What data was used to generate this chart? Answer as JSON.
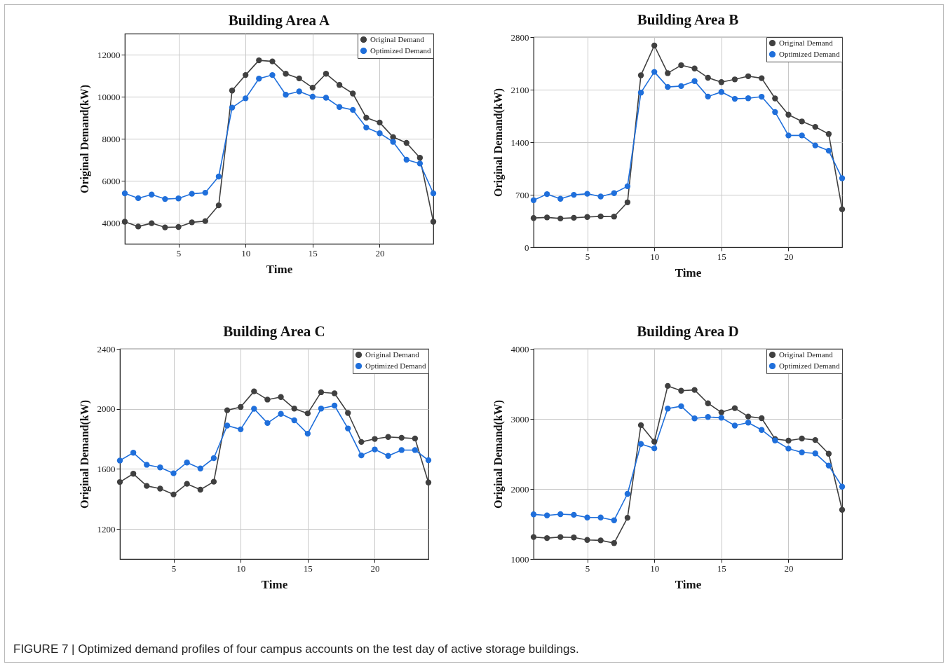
{
  "chart_data": [
    {
      "type": "line",
      "title": "Building Area A",
      "xlabel": "Time",
      "ylabel": "Original Demand(kW)",
      "x": [
        1,
        2,
        3,
        4,
        5,
        6,
        7,
        8,
        9,
        10,
        11,
        12,
        13,
        14,
        15,
        16,
        17,
        18,
        19,
        20,
        21,
        22,
        23,
        24
      ],
      "xlim": [
        1,
        24
      ],
      "xticks": [
        5,
        10,
        15,
        20
      ],
      "ylim": [
        3000,
        13000
      ],
      "yticks": [
        4000,
        6000,
        8000,
        10000,
        12000
      ],
      "grid": true,
      "legend": "top right",
      "marker": "circle",
      "line_style": "solid",
      "series": [
        {
          "name": "Original Demand",
          "color": "#404040",
          "values": [
            4050,
            3820,
            3980,
            3780,
            3800,
            4020,
            4080,
            4830,
            10290,
            11030,
            11730,
            11680,
            11090,
            10870,
            10430,
            11090,
            10560,
            10150,
            9000,
            8770,
            8080,
            7800,
            7090,
            4050
          ]
        },
        {
          "name": "Optimized Demand",
          "color": "#1f6fdb",
          "values": [
            5400,
            5170,
            5340,
            5130,
            5160,
            5380,
            5430,
            6200,
            9480,
            9920,
            10860,
            11030,
            10090,
            10250,
            10000,
            9950,
            9510,
            9370,
            8530,
            8260,
            7850,
            7000,
            6820,
            5400
          ]
        }
      ]
    },
    {
      "type": "line",
      "title": "Building Area B",
      "xlabel": "Time",
      "ylabel": "Original Demand(kW)",
      "x": [
        1,
        2,
        3,
        4,
        5,
        6,
        7,
        8,
        9,
        10,
        11,
        12,
        13,
        14,
        15,
        16,
        17,
        18,
        19,
        20,
        21,
        22,
        23,
        24
      ],
      "xlim": [
        1,
        24
      ],
      "xticks": [
        5,
        10,
        15,
        20
      ],
      "ylim": [
        0,
        2800
      ],
      "yticks": [
        0,
        700,
        1400,
        2100,
        2800
      ],
      "grid": true,
      "legend": "top right",
      "marker": "circle",
      "line_style": "solid",
      "series": [
        {
          "name": "Original Demand",
          "color": "#404040",
          "values": [
            390,
            398,
            384,
            393,
            404,
            412,
            409,
            599,
            2292,
            2688,
            2320,
            2426,
            2382,
            2259,
            2200,
            2237,
            2279,
            2253,
            1983,
            1766,
            1677,
            1604,
            1510,
            507
          ]
        },
        {
          "name": "Optimized Demand",
          "color": "#1f6fdb",
          "values": [
            627,
            708,
            646,
            699,
            713,
            677,
            721,
            813,
            2061,
            2337,
            2136,
            2148,
            2214,
            2008,
            2070,
            1978,
            1986,
            2006,
            1802,
            1490,
            1490,
            1357,
            1287,
            919
          ]
        }
      ]
    },
    {
      "type": "line",
      "title": "Building Area C",
      "xlabel": "Time",
      "ylabel": "Original Demand(kW)",
      "x": [
        1,
        2,
        3,
        4,
        5,
        6,
        7,
        8,
        9,
        10,
        11,
        12,
        13,
        14,
        15,
        16,
        17,
        18,
        19,
        20,
        21,
        22,
        23,
        24
      ],
      "xlim": [
        1,
        24
      ],
      "xticks": [
        5,
        10,
        15,
        20
      ],
      "ylim": [
        1000,
        2400
      ],
      "yticks": [
        1200,
        1600,
        2000,
        2400
      ],
      "grid": true,
      "legend": "top right",
      "marker": "circle",
      "line_style": "solid",
      "series": [
        {
          "name": "Original Demand",
          "color": "#404040",
          "values": [
            1513,
            1568,
            1487,
            1469,
            1430,
            1501,
            1462,
            1515,
            1991,
            2013,
            2117,
            2062,
            2079,
            2002,
            1970,
            2111,
            2104,
            1973,
            1780,
            1800,
            1813,
            1808,
            1803,
            1510
          ]
        },
        {
          "name": "Optimized Demand",
          "color": "#1f6fdb",
          "values": [
            1656,
            1708,
            1628,
            1610,
            1571,
            1643,
            1603,
            1672,
            1889,
            1864,
            2001,
            1906,
            1967,
            1924,
            1835,
            2002,
            2022,
            1870,
            1690,
            1730,
            1687,
            1726,
            1726,
            1658
          ]
        }
      ]
    },
    {
      "type": "line",
      "title": "Building Area D",
      "xlabel": "Time",
      "ylabel": "Original Demand(kW)",
      "x": [
        1,
        2,
        3,
        4,
        5,
        6,
        7,
        8,
        9,
        10,
        11,
        12,
        13,
        14,
        15,
        16,
        17,
        18,
        19,
        20,
        21,
        22,
        23,
        24
      ],
      "xlim": [
        1,
        24
      ],
      "xticks": [
        5,
        10,
        15,
        20
      ],
      "ylim": [
        1000,
        4000
      ],
      "yticks": [
        1000,
        2000,
        3000,
        4000
      ],
      "grid": true,
      "legend": "top right",
      "marker": "circle",
      "line_style": "solid",
      "annotations": [
        "FIGURE 7 | Optimized demand profiles of four campus accounts on the test day of active storage buildings."
      ],
      "series": [
        {
          "name": "Original Demand",
          "color": "#404040",
          "values": [
            1314,
            1299,
            1314,
            1308,
            1272,
            1266,
            1227,
            1589,
            2911,
            2675,
            3471,
            3402,
            3414,
            3223,
            3094,
            3154,
            3034,
            3010,
            2714,
            2690,
            2720,
            2699,
            2502,
            1703
          ]
        },
        {
          "name": "Optimized Demand",
          "color": "#1f6fdb",
          "values": [
            1637,
            1622,
            1640,
            1631,
            1592,
            1592,
            1553,
            1930,
            2642,
            2579,
            3148,
            3181,
            3007,
            3028,
            3016,
            2905,
            2947,
            2843,
            2693,
            2576,
            2523,
            2508,
            2334,
            2032
          ]
        }
      ]
    }
  ]
}
